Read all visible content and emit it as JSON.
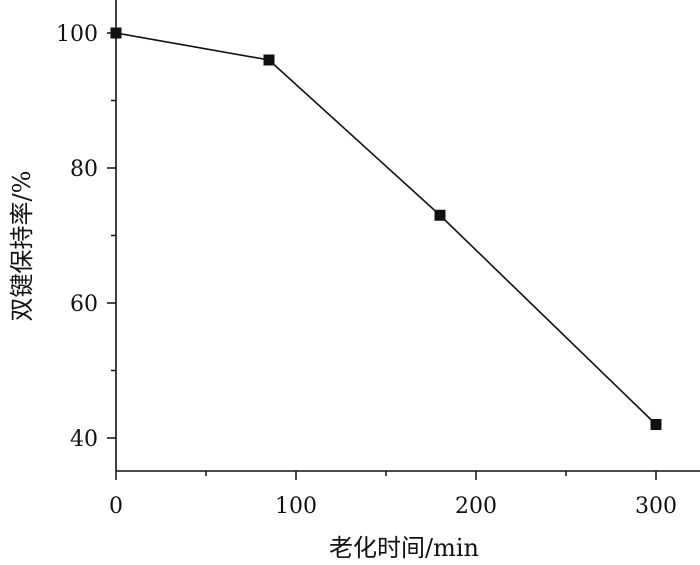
{
  "chart_data": {
    "type": "line",
    "xlabel": "老化时间/min",
    "ylabel": "双键保持率/%",
    "xlim": [
      0,
      325
    ],
    "ylim": [
      35,
      105
    ],
    "x_ticks": [
      "0",
      "100",
      "200",
      "300"
    ],
    "y_ticks": [
      "40",
      "60",
      "80",
      "100"
    ],
    "grid": false,
    "marker": "square",
    "colors": {
      "line": "#111111",
      "marker": "#111111",
      "axis": "#111111"
    },
    "series": [
      {
        "x": [
          0,
          85,
          180,
          300
        ],
        "y": [
          100,
          96,
          73,
          42
        ]
      }
    ]
  }
}
